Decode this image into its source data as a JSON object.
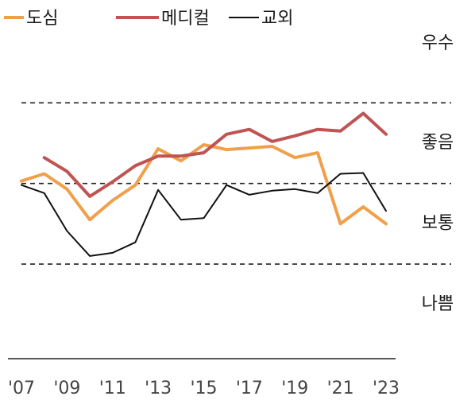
{
  "chart_data": {
    "type": "line",
    "x": [
      2007,
      2008,
      2009,
      2010,
      2011,
      2012,
      2013,
      2014,
      2015,
      2016,
      2017,
      2018,
      2019,
      2020,
      2021,
      2022,
      2023
    ],
    "x_tick_labels": [
      "'07",
      "'09",
      "'11",
      "'13",
      "'15",
      "'17",
      "'19",
      "'21",
      "'23"
    ],
    "x_tick_values": [
      2007,
      2009,
      2011,
      2013,
      2015,
      2017,
      2019,
      2021,
      2023
    ],
    "ylim": [
      0.35,
      3.9
    ],
    "band_lines": [
      1,
      2,
      3
    ],
    "band_labels": [
      {
        "label": "우수",
        "value": 3.73
      },
      {
        "label": "좋음",
        "value": 2.5
      },
      {
        "label": "보통",
        "value": 1.5
      },
      {
        "label": "나쁨",
        "value": 0.5
      }
    ],
    "series": [
      {
        "name": "도심",
        "color": "#F0A04B",
        "values": [
          2.03,
          2.12,
          1.93,
          1.55,
          1.79,
          1.98,
          2.43,
          2.28,
          2.48,
          2.42,
          2.44,
          2.46,
          2.32,
          2.38,
          1.5,
          1.71,
          1.5
        ]
      },
      {
        "name": "메디컬",
        "color": "#BF5453",
        "values": [
          null,
          2.32,
          2.15,
          1.84,
          2.02,
          2.22,
          2.34,
          2.34,
          2.38,
          2.61,
          2.67,
          2.52,
          2.59,
          2.67,
          2.65,
          2.87,
          2.61
        ]
      },
      {
        "name": "교외",
        "color": "#111111",
        "values": [
          1.98,
          1.88,
          1.41,
          1.1,
          1.14,
          1.27,
          1.92,
          1.55,
          1.57,
          1.98,
          1.86,
          1.91,
          1.93,
          1.88,
          2.12,
          2.13,
          1.66
        ]
      }
    ]
  }
}
